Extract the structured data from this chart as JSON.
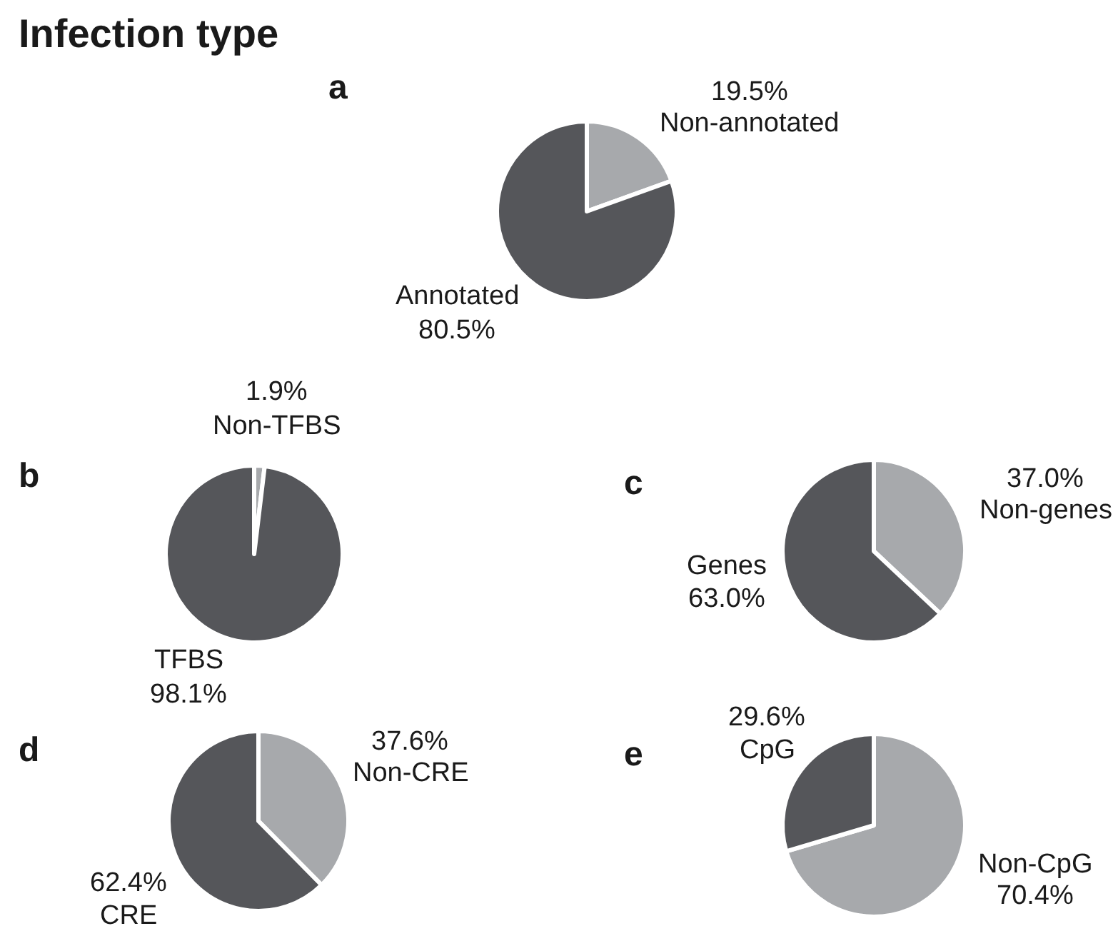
{
  "chart_data": [
    {
      "type": "pie",
      "title": "a",
      "annotations": [
        "Infection type"
      ],
      "categories": [
        "Non-annotated",
        "Annotated"
      ],
      "values": [
        19.5,
        80.5
      ],
      "value_labels": [
        "19.5%",
        "80.5%"
      ],
      "colors": [
        "#a7a9ac",
        "#55565a"
      ]
    },
    {
      "type": "pie",
      "title": "b",
      "categories": [
        "Non-TFBS",
        "TFBS"
      ],
      "values": [
        1.9,
        98.1
      ],
      "value_labels": [
        "1.9%",
        "98.1%"
      ],
      "colors": [
        "#a7a9ac",
        "#55565a"
      ]
    },
    {
      "type": "pie",
      "title": "c",
      "categories": [
        "Non-genes",
        "Genes"
      ],
      "values": [
        37.0,
        63.0
      ],
      "value_labels": [
        "37.0%",
        "63.0%"
      ],
      "colors": [
        "#a7a9ac",
        "#55565a"
      ]
    },
    {
      "type": "pie",
      "title": "d",
      "categories": [
        "Non-CRE",
        "CRE"
      ],
      "values": [
        37.6,
        62.4
      ],
      "value_labels": [
        "37.6%",
        "62.4%"
      ],
      "colors": [
        "#a7a9ac",
        "#55565a"
      ]
    },
    {
      "type": "pie",
      "title": "e",
      "categories": [
        "Non-CpG",
        "CpG"
      ],
      "values": [
        70.4,
        29.6
      ],
      "value_labels": [
        "70.4%",
        "29.6%"
      ],
      "colors": [
        "#a7a9ac",
        "#55565a"
      ]
    }
  ]
}
